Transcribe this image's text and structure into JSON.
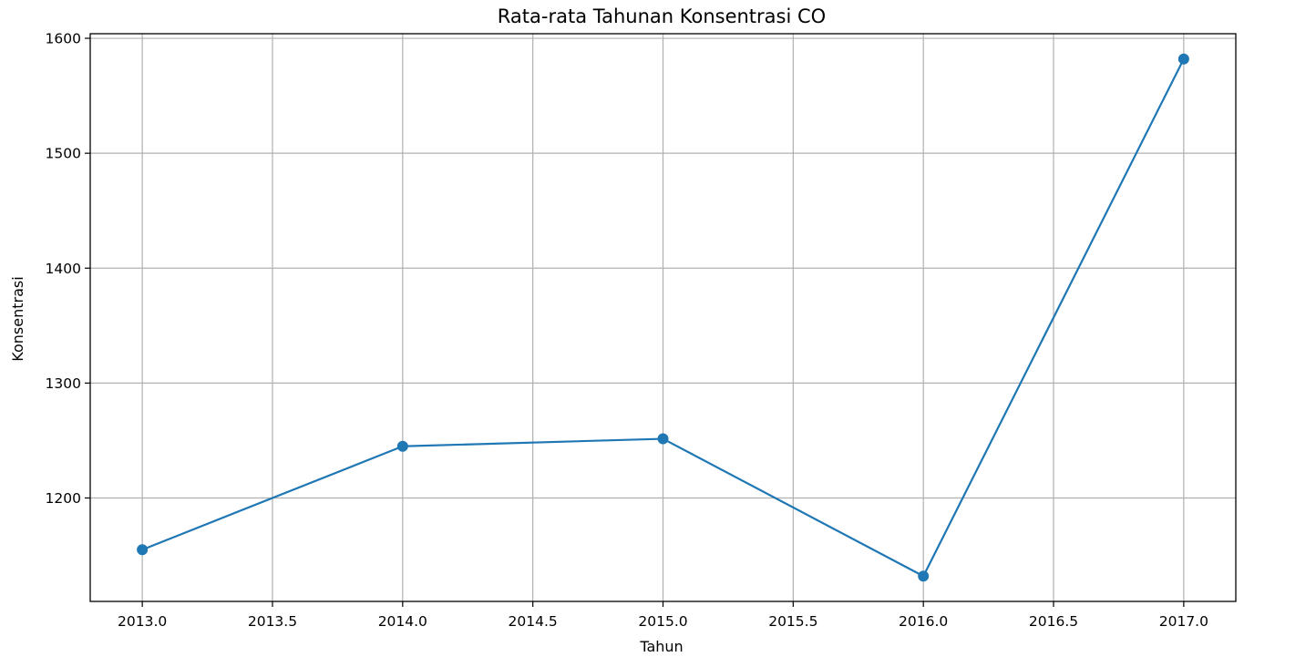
{
  "chart_data": {
    "type": "line",
    "title": "Rata-rata Tahunan Konsentrasi CO",
    "xlabel": "Tahun",
    "ylabel": "Konsentrasi",
    "x": [
      2013,
      2014,
      2015,
      2016,
      2017
    ],
    "series": [
      {
        "values": [
          1155,
          1245,
          1251.5,
          1132,
          1582
        ]
      }
    ],
    "xlim": [
      2012.8,
      2017.2
    ],
    "ylim": [
      1110,
      1604
    ],
    "xticks": [
      2013.0,
      2013.5,
      2014.0,
      2014.5,
      2015.0,
      2015.5,
      2016.0,
      2016.5,
      2017.0
    ],
    "xtick_labels": [
      "2013.0",
      "2013.5",
      "2014.0",
      "2014.5",
      "2015.0",
      "2015.5",
      "2016.0",
      "2016.5",
      "2017.0"
    ],
    "yticks": [
      1200,
      1300,
      1400,
      1500,
      1600
    ],
    "ytick_labels": [
      "1200",
      "1300",
      "1400",
      "1500",
      "1600"
    ],
    "grid": true,
    "marker": "circle",
    "colors": {
      "line": "#1f77b4",
      "grid": "#b0b0b0",
      "axes": "#000000"
    }
  }
}
